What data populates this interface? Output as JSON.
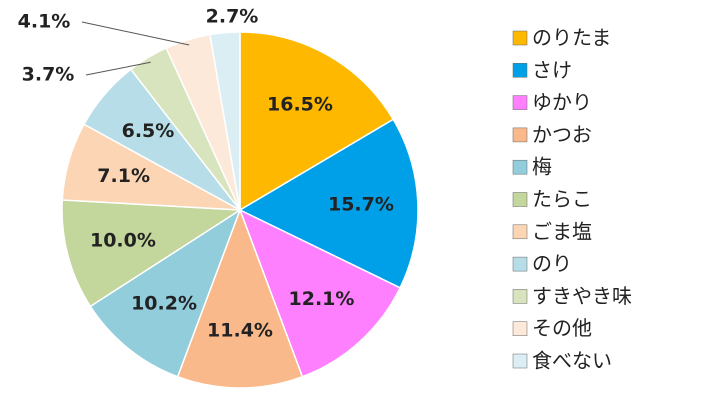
{
  "chart_data": {
    "type": "pie",
    "categories": [
      "のりたま",
      "さけ",
      "ゆかり",
      "かつお",
      "梅",
      "たらこ",
      "ごま塩",
      "のり",
      "すきやき味",
      "その他",
      "食べない"
    ],
    "values": [
      16.5,
      15.7,
      12.1,
      11.4,
      10.2,
      10.0,
      7.1,
      6.5,
      3.7,
      4.1,
      2.7
    ],
    "value_labels": [
      "16.5%",
      "15.7%",
      "12.1%",
      "11.4%",
      "10.2%",
      "10.0%",
      "7.1%",
      "6.5%",
      "3.7%",
      "4.1%",
      "2.7%"
    ],
    "colors": [
      "#FFB800",
      "#00A0E9",
      "#FF80FF",
      "#F9B98A",
      "#92CDDC",
      "#C3D69B",
      "#FCD5B5",
      "#B7DEE8",
      "#D7E4BD",
      "#FDE9D9",
      "#DAEEF3"
    ],
    "legend": "right"
  }
}
